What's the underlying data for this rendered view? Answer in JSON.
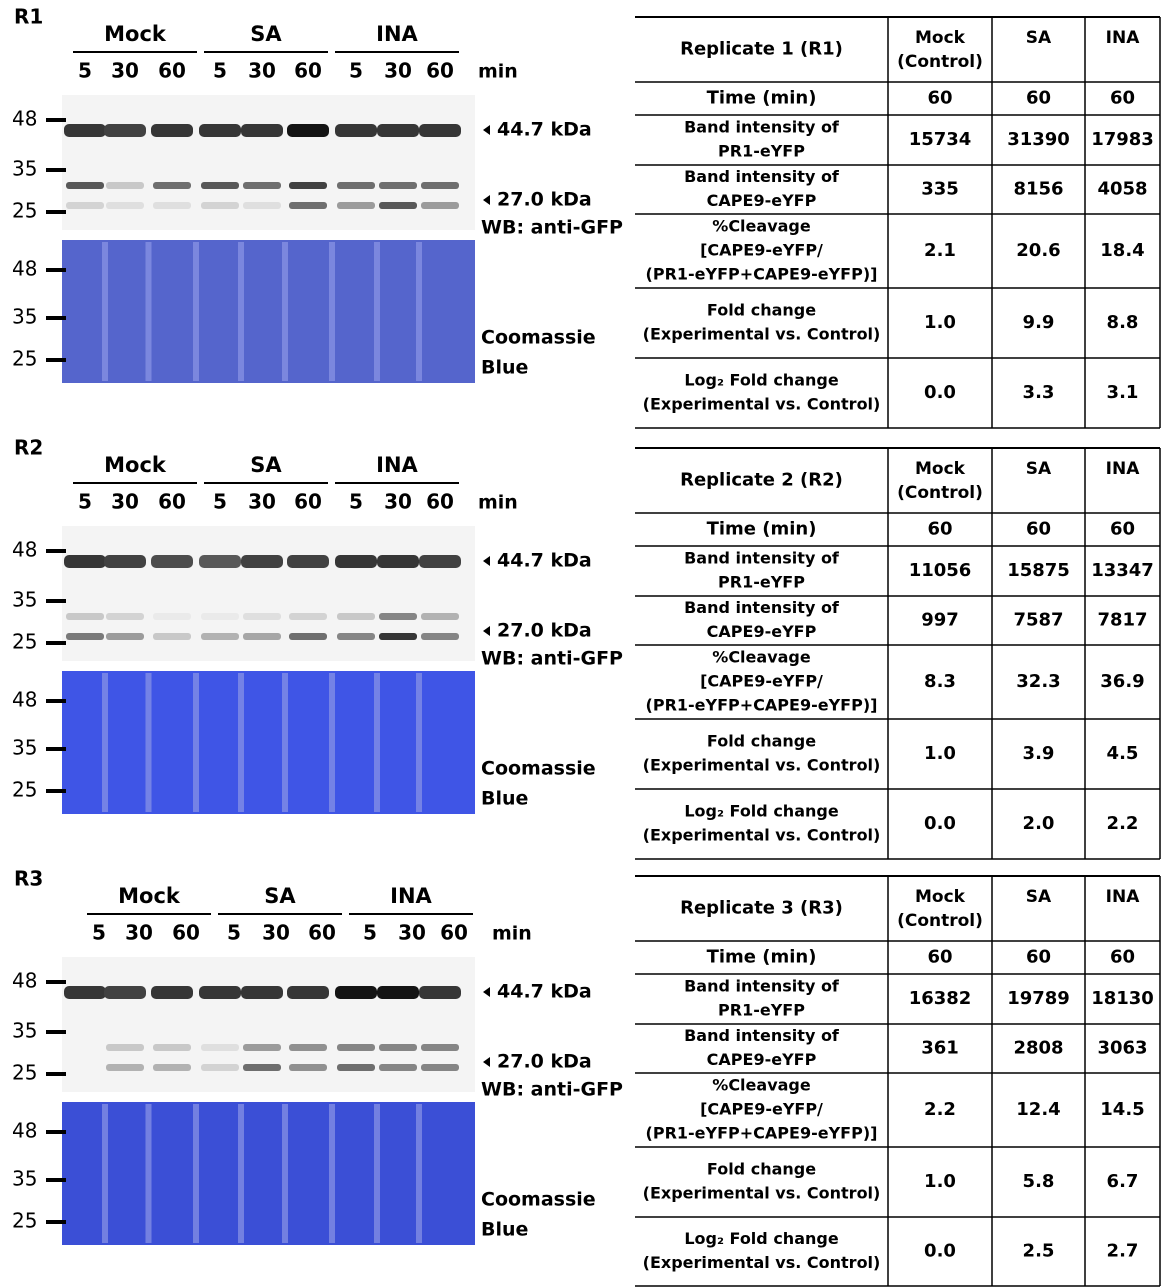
{
  "panels": [
    {
      "label": "R1",
      "groups": [
        "Mock",
        "SA",
        "INA"
      ],
      "times": [
        "5",
        "30",
        "60",
        "5",
        "30",
        "60",
        "5",
        "30",
        "60"
      ],
      "unit": "min",
      "blot_markers": [
        "48",
        "35",
        "25"
      ],
      "stain_markers": [
        "48",
        "35",
        "25"
      ],
      "band_labels": [
        "44.7 kDa",
        "27.0 kDa"
      ],
      "blot_label": "WB: anti-GFP",
      "stain_label": [
        "Coomassie",
        "Blue"
      ],
      "table": {
        "header": [
          [
            "Replicate 1 (R1)"
          ],
          [
            "Mock",
            "(Control)"
          ],
          [
            "SA"
          ],
          [
            "INA"
          ]
        ],
        "rows": [
          [
            [
              "Time (min)"
            ],
            "60",
            "60",
            "60"
          ],
          [
            [
              "Band intensity of",
              "PR1-eYFP"
            ],
            "15734",
            "31390",
            "17983"
          ],
          [
            [
              "Band intensity of",
              "CAPE9-eYFP"
            ],
            "335",
            "8156",
            "4058"
          ],
          [
            [
              "%Cleavage",
              "[CAPE9-eYFP/",
              "(PR1-eYFP+CAPE9-eYFP)]"
            ],
            "2.1",
            "20.6",
            "18.4"
          ],
          [
            [
              "Fold change",
              "(Experimental vs. Control)"
            ],
            "1.0",
            "9.9",
            "8.8"
          ],
          [
            [
              "Log₂ Fold change",
              "(Experimental vs. Control)"
            ],
            "0.0",
            "3.3",
            "3.1"
          ]
        ]
      }
    },
    {
      "label": "R2",
      "groups": [
        "Mock",
        "SA",
        "INA"
      ],
      "times": [
        "5",
        "30",
        "60",
        "5",
        "30",
        "60",
        "5",
        "30",
        "60"
      ],
      "unit": "min",
      "blot_markers": [
        "48",
        "35",
        "25"
      ],
      "stain_markers": [
        "48",
        "35",
        "25"
      ],
      "band_labels": [
        "44.7 kDa",
        "27.0 kDa"
      ],
      "blot_label": "WB: anti-GFP",
      "stain_label": [
        "Coomassie",
        "Blue"
      ],
      "table": {
        "header": [
          [
            "Replicate 2 (R2)"
          ],
          [
            "Mock",
            "(Control)"
          ],
          [
            "SA"
          ],
          [
            "INA"
          ]
        ],
        "rows": [
          [
            [
              "Time (min)"
            ],
            "60",
            "60",
            "60"
          ],
          [
            [
              "Band intensity of",
              "PR1-eYFP"
            ],
            "11056",
            "15875",
            "13347"
          ],
          [
            [
              "Band intensity of",
              "CAPE9-eYFP"
            ],
            "997",
            "7587",
            "7817"
          ],
          [
            [
              "%Cleavage",
              "[CAPE9-eYFP/",
              "(PR1-eYFP+CAPE9-eYFP)]"
            ],
            "8.3",
            "32.3",
            "36.9"
          ],
          [
            [
              "Fold change",
              "(Experimental vs. Control)"
            ],
            "1.0",
            "3.9",
            "4.5"
          ],
          [
            [
              "Log₂ Fold change",
              "(Experimental vs. Control)"
            ],
            "0.0",
            "2.0",
            "2.2"
          ]
        ]
      }
    },
    {
      "label": "R3",
      "groups": [
        "Mock",
        "SA",
        "INA"
      ],
      "times": [
        "5",
        "30",
        "60",
        "5",
        "30",
        "60",
        "5",
        "30",
        "60"
      ],
      "unit": "min",
      "blot_markers": [
        "48",
        "35",
        "25"
      ],
      "stain_markers": [
        "48",
        "35",
        "25"
      ],
      "band_labels": [
        "44.7 kDa",
        "27.0 kDa"
      ],
      "blot_label": "WB: anti-GFP",
      "stain_label": [
        "Coomassie",
        "Blue"
      ],
      "table": {
        "header": [
          [
            "Replicate 3 (R3)"
          ],
          [
            "Mock",
            "(Control)"
          ],
          [
            "SA"
          ],
          [
            "INA"
          ]
        ],
        "rows": [
          [
            [
              "Time (min)"
            ],
            "60",
            "60",
            "60"
          ],
          [
            [
              "Band intensity of",
              "PR1-eYFP"
            ],
            "16382",
            "19789",
            "18130"
          ],
          [
            [
              "Band intensity of",
              "CAPE9-eYFP"
            ],
            "361",
            "2808",
            "3063"
          ],
          [
            [
              "%Cleavage",
              "[CAPE9-eYFP/",
              "(PR1-eYFP+CAPE9-eYFP)]"
            ],
            "2.2",
            "12.4",
            "14.5"
          ],
          [
            [
              "Fold change",
              "(Experimental vs. Control)"
            ],
            "1.0",
            "5.8",
            "6.7"
          ],
          [
            [
              "Log₂ Fold change",
              "(Experimental vs. Control)"
            ],
            "0.0",
            "2.5",
            "2.7"
          ]
        ]
      }
    }
  ]
}
